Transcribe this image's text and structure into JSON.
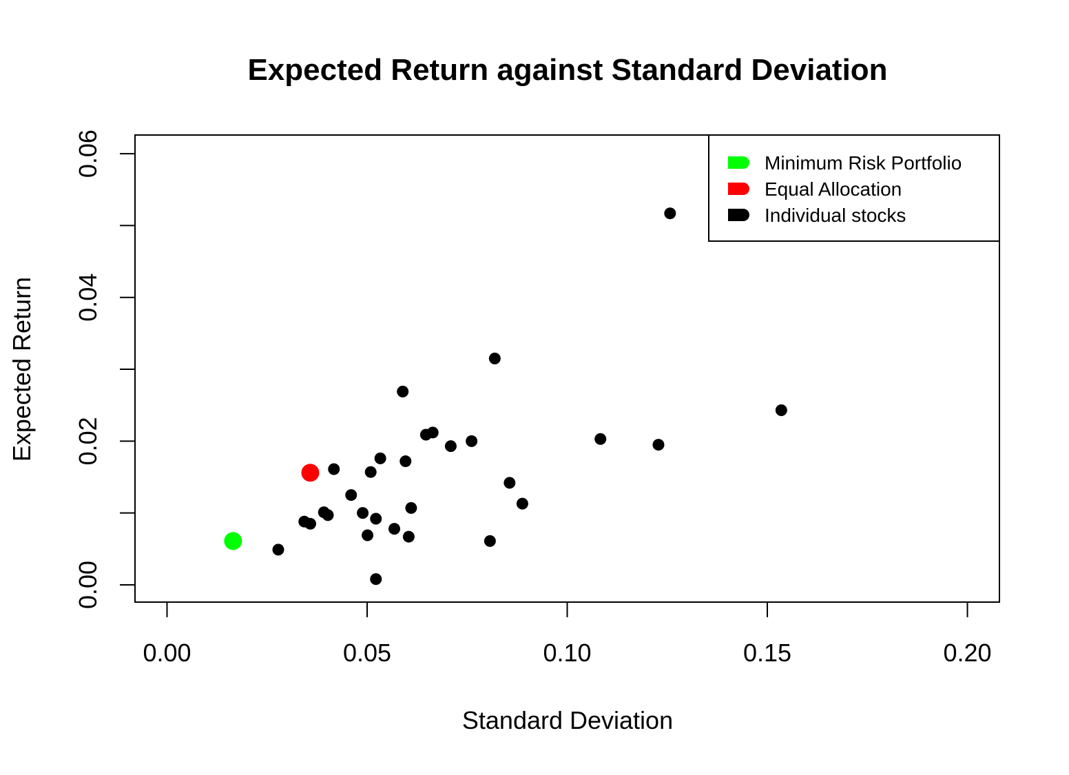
{
  "chart_data": {
    "type": "scatter",
    "title": "Expected Return against Standard Deviation",
    "xlabel": "Standard Deviation",
    "ylabel": "Expected Return",
    "xlim": [
      -0.008,
      0.208
    ],
    "ylim": [
      -0.0024,
      0.0626
    ],
    "xticks": [
      0.0,
      0.05,
      0.1,
      0.15,
      0.2
    ],
    "xtick_labels": [
      "0.00",
      "0.05",
      "0.10",
      "0.15",
      "0.20"
    ],
    "yticks": [
      0.0,
      0.01,
      0.02,
      0.03,
      0.04,
      0.05,
      0.06
    ],
    "ytick_labels": [
      "0.00",
      "",
      "0.02",
      "",
      "0.04",
      "",
      "0.06"
    ],
    "grid": false,
    "legend_position": "top-right",
    "legend": [
      {
        "label": "Minimum Risk Portfolio",
        "color": "#00ff00"
      },
      {
        "label": "Equal Allocation",
        "color": "#ff0000"
      },
      {
        "label": "Individual stocks",
        "color": "#000000"
      }
    ],
    "series": [
      {
        "name": "Minimum Risk Portfolio",
        "color": "#00ff00",
        "marker_size": "large",
        "points": [
          [
            0.0165,
            0.0061
          ]
        ]
      },
      {
        "name": "Equal Allocation",
        "color": "#ff0000",
        "marker_size": "large",
        "points": [
          [
            0.0358,
            0.0156
          ]
        ]
      },
      {
        "name": "Individual stocks",
        "color": "#000000",
        "marker_size": "small",
        "points": [
          [
            0.1257,
            0.0517
          ],
          [
            0.0819,
            0.0315
          ],
          [
            0.0589,
            0.0269
          ],
          [
            0.1535,
            0.0243
          ],
          [
            0.0664,
            0.0212
          ],
          [
            0.0647,
            0.0209
          ],
          [
            0.1083,
            0.0203
          ],
          [
            0.0761,
            0.02
          ],
          [
            0.1228,
            0.0195
          ],
          [
            0.0709,
            0.0193
          ],
          [
            0.0533,
            0.0176
          ],
          [
            0.0596,
            0.0172
          ],
          [
            0.0417,
            0.0161
          ],
          [
            0.0509,
            0.0157
          ],
          [
            0.0856,
            0.0142
          ],
          [
            0.046,
            0.0125
          ],
          [
            0.0888,
            0.0113
          ],
          [
            0.061,
            0.0107
          ],
          [
            0.0392,
            0.0101
          ],
          [
            0.0489,
            0.01
          ],
          [
            0.0402,
            0.0097
          ],
          [
            0.0522,
            0.0092
          ],
          [
            0.0343,
            0.0088
          ],
          [
            0.0358,
            0.0085
          ],
          [
            0.0568,
            0.0078
          ],
          [
            0.0501,
            0.0069
          ],
          [
            0.0604,
            0.0067
          ],
          [
            0.0807,
            0.0061
          ],
          [
            0.0278,
            0.0049
          ],
          [
            0.0522,
            0.0008
          ]
        ]
      }
    ]
  }
}
